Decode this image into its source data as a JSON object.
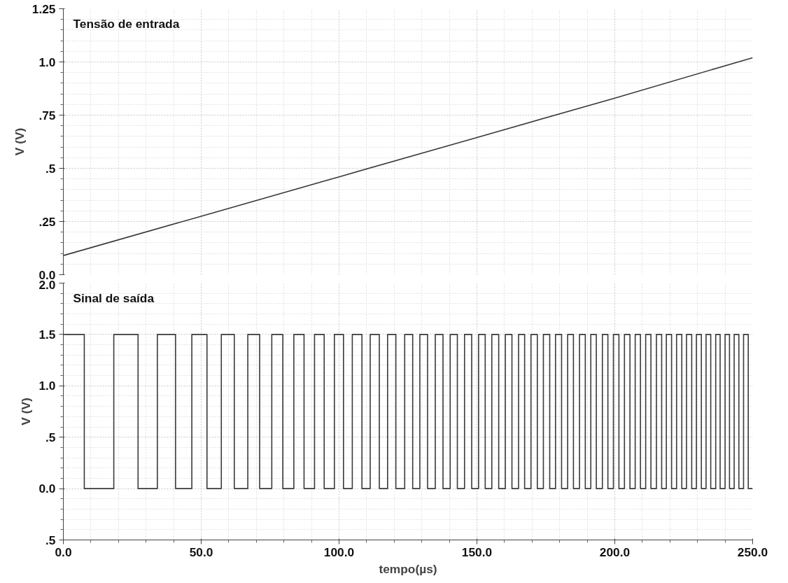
{
  "chart_data": [
    {
      "type": "line",
      "title": "Tensão de entrada",
      "ylabel": "V (V)",
      "xlim": [
        0,
        250
      ],
      "ylim": [
        0,
        1.25
      ],
      "xticks": [
        0,
        50,
        100,
        150,
        200,
        250
      ],
      "yticks": [
        {
          "value": 0,
          "label": "0.0"
        },
        {
          "value": 0.25,
          "label": ".25"
        },
        {
          "value": 0.5,
          "label": ".5"
        },
        {
          "value": 0.75,
          "label": ".75"
        },
        {
          "value": 1.0,
          "label": "1.0"
        },
        {
          "value": 1.25,
          "label": "1.25"
        }
      ],
      "grid": true,
      "tick_labels": "y",
      "series": [
        {
          "color": "#3a3a3a",
          "x": [
            0,
            50,
            100,
            150,
            200,
            250
          ],
          "values": [
            0.09,
            0.275,
            0.46,
            0.645,
            0.83,
            1.02
          ]
        }
      ]
    },
    {
      "type": "step",
      "title": "Sinal de saída",
      "xlabel": "tempo(µs)",
      "ylabel": "V (V)",
      "xlim": [
        0,
        250
      ],
      "ylim": [
        -0.5,
        2.0
      ],
      "xticks": [
        {
          "value": 0,
          "label": "0.0"
        },
        {
          "value": 50,
          "label": "50.0"
        },
        {
          "value": 100,
          "label": "100.0"
        },
        {
          "value": 150,
          "label": "150.0"
        },
        {
          "value": 200,
          "label": "200.0"
        },
        {
          "value": 250,
          "label": "250.0"
        }
      ],
      "yticks": [
        {
          "value": -0.5,
          "label": ".5"
        },
        {
          "value": 0,
          "label": "0.0"
        },
        {
          "value": 0.5,
          "label": ".5"
        },
        {
          "value": 1.0,
          "label": "1.0"
        },
        {
          "value": 1.5,
          "label": "1.5"
        },
        {
          "value": 2.0,
          "label": "2.0"
        }
      ],
      "grid": true,
      "series": [
        {
          "color": "#3a3a3a",
          "x": [
            0,
            7.6,
            18.3,
            27.1,
            34.1,
            40.7,
            46.6,
            52.1,
            57.3,
            62.0,
            66.9,
            71.2,
            75.6,
            79.6,
            83.6,
            87.3,
            91.1,
            94.6,
            98.3,
            101.6,
            104.8,
            108.3,
            111.3,
            114.6,
            117.6,
            120.6,
            123.8,
            126.7,
            129.3,
            132.1,
            134.9,
            137.7,
            140.3,
            142.9,
            145.5,
            148.1,
            150.6,
            153.0,
            155.4,
            157.9,
            160.3,
            162.7,
            165.1,
            167.3,
            169.6,
            171.9,
            174.1,
            176.4,
            178.5,
            180.7,
            182.9,
            185.0,
            187.2,
            189.3,
            191.3,
            193.3,
            195.5,
            197.5,
            199.5,
            201.5,
            203.5,
            205.5,
            207.4,
            209.3,
            211.2,
            213.1,
            215.1,
            217.0,
            218.7,
            220.6,
            222.4,
            224.3,
            226.0,
            227.9,
            229.6,
            231.4,
            233.1,
            234.8,
            236.6,
            238.2,
            240.0,
            241.6,
            243.3,
            245.0,
            246.7,
            248.4,
            250
          ],
          "values": [
            1.5,
            0,
            1.5,
            0,
            1.5,
            0,
            1.5,
            0,
            1.5,
            0,
            1.5,
            0,
            1.5,
            0,
            1.5,
            0,
            1.5,
            0,
            1.5,
            0,
            1.5,
            0,
            1.5,
            0,
            1.5,
            0,
            1.5,
            0,
            1.5,
            0,
            1.5,
            0,
            1.5,
            0,
            1.5,
            0,
            1.5,
            0,
            1.5,
            0,
            1.5,
            0,
            1.5,
            0,
            1.5,
            0,
            1.5,
            0,
            1.5,
            0,
            1.5,
            0,
            1.5,
            0,
            1.5,
            0,
            1.5,
            0,
            1.5,
            0,
            1.5,
            0,
            1.5,
            0,
            1.5,
            0,
            1.5,
            0,
            1.5,
            0,
            1.5,
            0,
            1.5,
            0,
            1.5,
            0,
            1.5,
            0,
            1.5,
            0,
            1.5,
            0,
            1.5,
            0,
            1.5,
            0,
            0
          ]
        }
      ]
    }
  ]
}
